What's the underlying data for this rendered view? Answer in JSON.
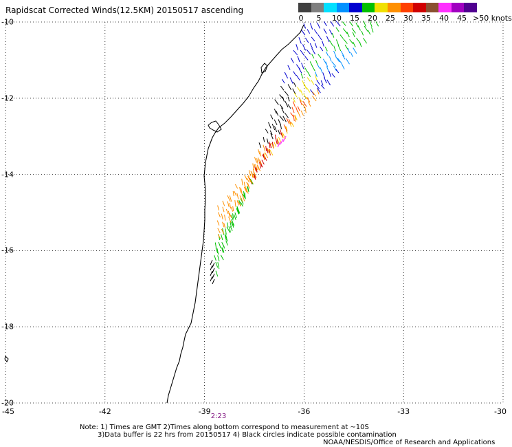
{
  "title": "Rapidscat Corrected Winds(12.5KM) 20150517 ascending",
  "legend": {
    "colors": [
      "#404040",
      "#7f7f7f",
      "#00e0ff",
      "#0090ff",
      "#0000d0",
      "#00c000",
      "#f0e000",
      "#ff9000",
      "#ff4000",
      "#d00000",
      "#8a5030",
      "#ff30ff",
      "#a000c0",
      "#500090"
    ],
    "ticks": [
      "0",
      "5",
      "10",
      "15",
      "20",
      "25",
      "30",
      "35",
      "40",
      "45"
    ],
    "unit": ">50 knots"
  },
  "axes": {
    "lon_ticks": [
      "-45",
      "-42",
      "-39",
      "-36",
      "-33",
      "-30"
    ],
    "lat_ticks": [
      "-10",
      "-12",
      "-14",
      "-16",
      "-18",
      "-20"
    ],
    "lon_range": [
      -45,
      -30
    ],
    "lat_range": [
      -20,
      -10
    ],
    "grid": "dotted"
  },
  "time_label": "2:23",
  "notes": {
    "line1": "Note: 1) Times are GMT 2)Times along bottom correspond to measurement at ~10S",
    "line2": "3)Data buffer is 22 hrs from 20150517 4) Black circles indicate possible contamination"
  },
  "credit": "NOAA/NESDIS/Office of Research and Applications"
}
